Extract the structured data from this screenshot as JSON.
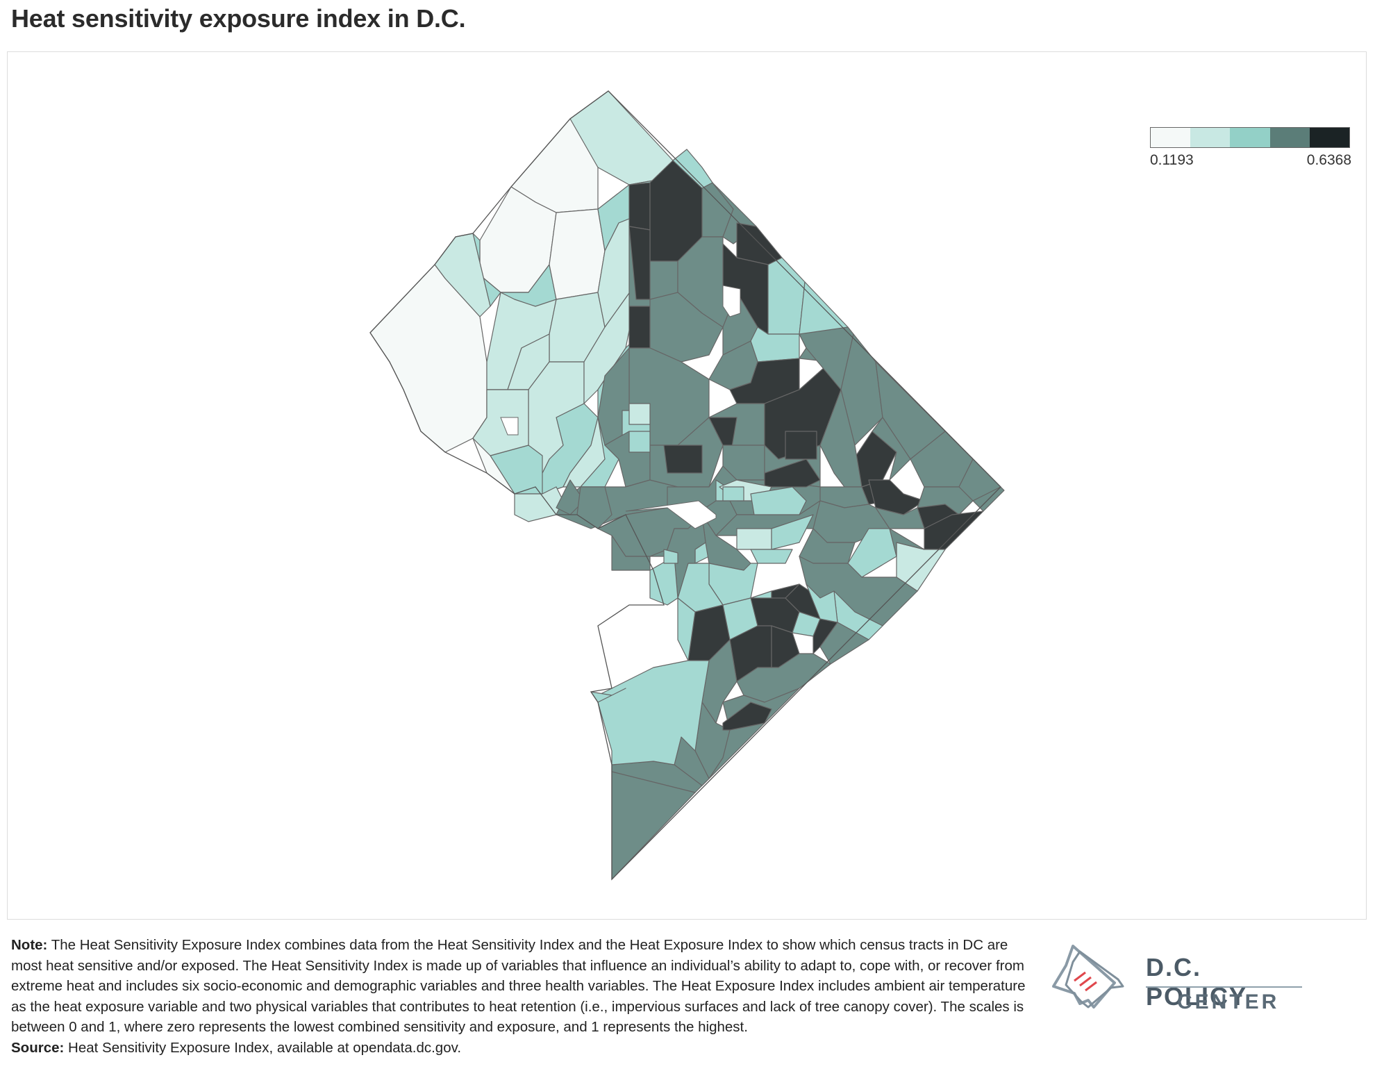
{
  "title": "Heat sensitivity exposure index in D.C.",
  "legend": {
    "min_label": "0.1193",
    "max_label": "0.6368",
    "colors": [
      "#f5f9f8",
      "#c8e8e3",
      "#93d0c7",
      "#5b7d78",
      "#1b2325"
    ]
  },
  "map": {
    "region": "Washington, D.C. census tracts",
    "boundary_color": "#666666",
    "fill_levels": [
      "#f5f9f8",
      "#c9e9e3",
      "#a4d9d2",
      "#6e8d88",
      "#353a3b"
    ]
  },
  "note": {
    "label": "Note:",
    "text": "The Heat Sensitivity Exposure Index combines data from the Heat Sensitivity Index and the Heat Exposure Index to show which census tracts in DC are most heat sensitive and/or exposed. The Heat Sensitivity Index is made up of variables that influence an individual’s ability to adapt to, cope with, or recover from extreme heat and includes six socio-economic and demographic variables and three health variables. The Heat Exposure Index includes ambient air temperature as the heat exposure variable and two physical variables that contributes to heat retention (i.e., impervious surfaces and lack of tree canopy cover). The scales is between 0 and 1, where zero represents the lowest combined sensitivity and exposure, and 1 represents the highest."
  },
  "source": {
    "label": "Source:",
    "text": "Heat Sensitivity Exposure Index, available at opendata.dc.gov."
  },
  "logo": {
    "line1": "D.C. POLICY",
    "line2": "CENTER"
  }
}
